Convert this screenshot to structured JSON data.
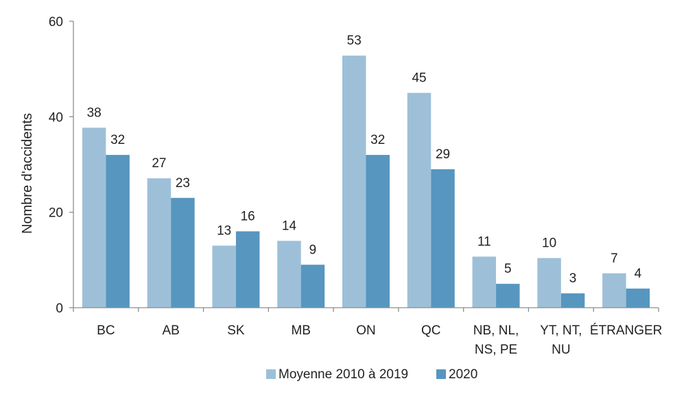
{
  "chart_data": {
    "type": "bar",
    "title": "",
    "xlabel": "",
    "ylabel": "Nombre d'accidents",
    "ylim": [
      0,
      60
    ],
    "yticks": [
      0,
      20,
      40,
      60
    ],
    "grid": false,
    "legend_position": "bottom",
    "categories": [
      [
        "BC"
      ],
      [
        "AB"
      ],
      [
        "SK"
      ],
      [
        "MB"
      ],
      [
        "ON"
      ],
      [
        "QC"
      ],
      [
        "NB, NL,",
        "NS, PE"
      ],
      [
        "YT, NT,",
        "NU"
      ],
      [
        "ÉTRANGER"
      ]
    ],
    "series": [
      {
        "name": "Moyenne 2010 à 2019",
        "color": "#9dc0d8",
        "values": [
          38,
          27,
          13,
          14,
          53,
          45,
          11,
          10,
          7
        ],
        "plot_values": [
          37.7,
          27.1,
          13.0,
          14.0,
          52.8,
          45.0,
          10.7,
          10.4,
          7.2
        ]
      },
      {
        "name": "2020",
        "color": "#5696bf",
        "values": [
          32,
          23,
          16,
          9,
          32,
          29,
          5,
          3,
          4
        ]
      }
    ]
  }
}
